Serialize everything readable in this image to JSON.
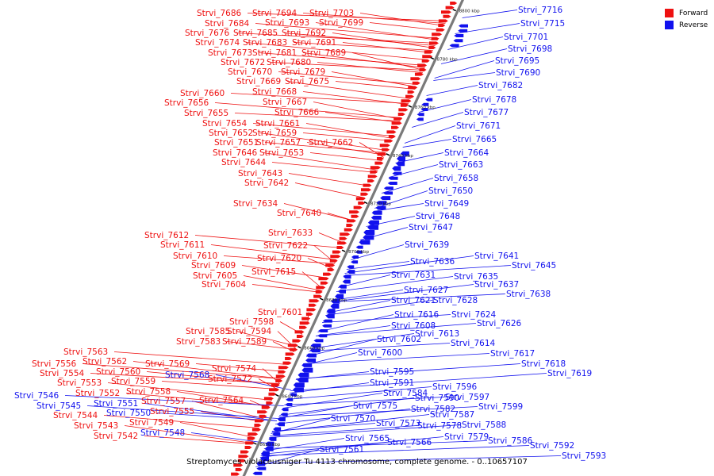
{
  "legend": {
    "forward": {
      "label": "Forward",
      "color": "#ee1111"
    },
    "reverse": {
      "label": "Reverse",
      "color": "#1111ee"
    }
  },
  "caption": "Streptomyces violaceusniger Tu 4113 chromosome, complete genome. - 0..10657107",
  "ticks": [
    "8620 kbp",
    "8640 kbp",
    "8660 kbp",
    "8680 kbp",
    "8700 kbp",
    "8720 kbp",
    "8740 kbp",
    "8760 kbp",
    "8780 kbp",
    "8800 kbp"
  ],
  "forward_labels": [
    "Strvi_7686",
    "Strvi_7694",
    "Strvi_7703",
    "Strvi_7684",
    "Strvi_7693",
    "Strvi_7699",
    "Strvi_7676",
    "Strvi_7685",
    "Strvi_7692",
    "Strvi_7674",
    "Strvi_7683",
    "Strvi_7691",
    "Strvi_7673",
    "Strvi_7681",
    "Strvi_7689",
    "Strvi_7672",
    "Strvi_7680",
    "Strvi_7670",
    "Strvi_7679",
    "Strvi_7669",
    "Strvi_7675",
    "Strvi_7660",
    "Strvi_7668",
    "Strvi_7656",
    "Strvi_7667",
    "Strvi_7655",
    "Strvi_7666",
    "Strvi_7654",
    "Strvi_7661",
    "Strvi_7652",
    "Strvi_7659",
    "Strvi_7651",
    "Strvi_7657",
    "Strvi_7662",
    "Strvi_7646",
    "Strvi_7653",
    "Strvi_7644",
    "Strvi_7643",
    "Strvi_7642",
    "Strvi_7634",
    "Strvi_7640",
    "Strvi_7633",
    "Strvi_7612",
    "Strvi_7611",
    "Strvi_7622",
    "Strvi_7610",
    "Strvi_7620",
    "Strvi_7609",
    "Strvi_7605",
    "Strvi_7615",
    "Strvi_7604",
    "Strvi_7601",
    "Strvi_7598",
    "Strvi_7585",
    "Strvi_7594",
    "Strvi_7583",
    "Strvi_7589",
    "Strvi_7563",
    "Strvi_7556",
    "Strvi_7562",
    "Strvi_7569",
    "Strvi_7554",
    "Strvi_7560",
    "Strvi_7574",
    "Strvi_7553",
    "Strvi_7559",
    "Strvi_7572",
    "Strvi_7552",
    "Strvi_7558",
    "Strvi_7557",
    "Strvi_7564",
    "Strvi_7555",
    "Strvi_7544",
    "Strvi_7549",
    "Strvi_7543",
    "Strvi_7542"
  ],
  "reverse_labels": [
    "Strvi_7716",
    "Strvi_7715",
    "Strvi_7701",
    "Strvi_7698",
    "Strvi_7695",
    "Strvi_7690",
    "Strvi_7682",
    "Strvi_7678",
    "Strvi_7677",
    "Strvi_7671",
    "Strvi_7665",
    "Strvi_7664",
    "Strvi_7663",
    "Strvi_7658",
    "Strvi_7650",
    "Strvi_7649",
    "Strvi_7648",
    "Strvi_7647",
    "Strvi_7639",
    "Strvi_7641",
    "Strvi_7636",
    "Strvi_7645",
    "Strvi_7631",
    "Strvi_7635",
    "Strvi_7637",
    "Strvi_7638",
    "Strvi_7627",
    "Strvi_7621",
    "Strvi_7628",
    "Strvi_7616",
    "Strvi_7624",
    "Strvi_7608",
    "Strvi_7626",
    "Strvi_7613",
    "Strvi_7602",
    "Strvi_7614",
    "Strvi_7617",
    "Strvi_7600",
    "Strvi_7618",
    "Strvi_7619",
    "Strvi_7595",
    "Strvi_7591",
    "Strvi_7596",
    "Strvi_7584",
    "Strvi_7590",
    "Strvi_7597",
    "Strvi_7599",
    "Strvi_7575",
    "Strvi_7582",
    "Strvi_7587",
    "Strvi_7573",
    "Strvi_7578",
    "Strvi_7588",
    "Strvi_7570",
    "Strvi_7579",
    "Strvi_7586",
    "Strvi_7592",
    "Strvi_7565",
    "Strvi_7566",
    "Strvi_7561",
    "Strvi_7593",
    "Strvi_7546",
    "Strvi_7545",
    "Strvi_7568",
    "Strvi_7551",
    "Strvi_7550",
    "Strvi_7548"
  ]
}
